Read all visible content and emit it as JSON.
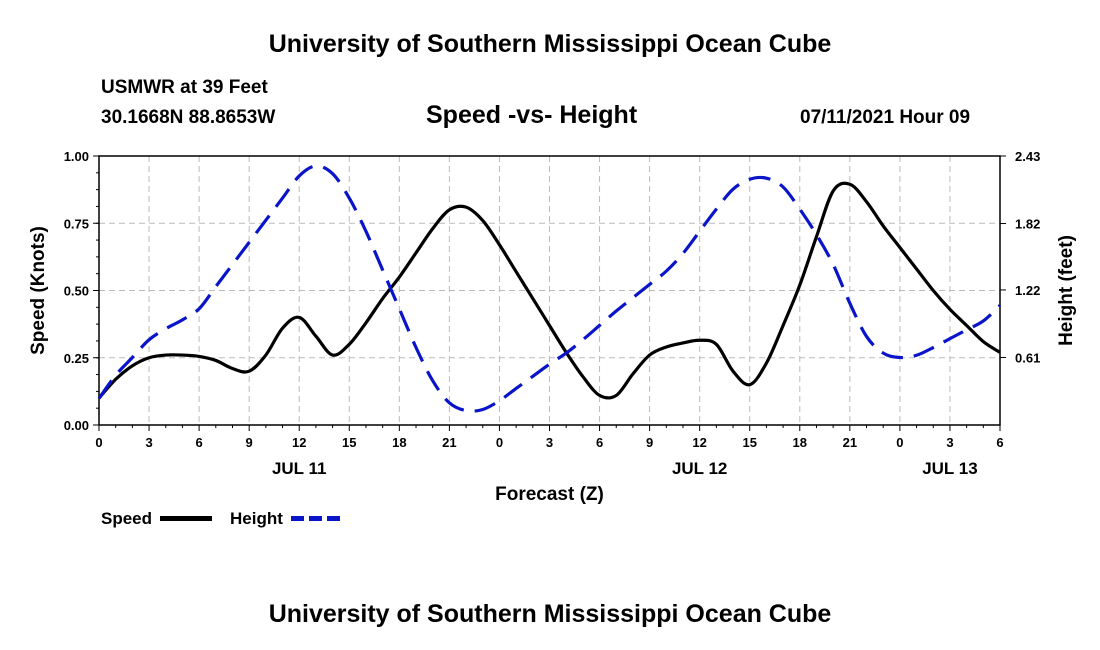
{
  "page_title_top": "University of Southern Mississippi Ocean Cube",
  "page_title_bottom": "University of Southern Mississippi Ocean Cube",
  "station": {
    "name": "USMWR at 39 Feet",
    "coords": "30.1668N  88.8653W",
    "datetime": "07/11/2021 Hour 09"
  },
  "colors": {
    "speed": "#000000",
    "height": "#0a14c8",
    "grid": "#bbbbbb"
  },
  "chart_data": {
    "type": "line",
    "title": "Speed -vs- Height",
    "xlabel": "Forecast (Z)",
    "ylabel": "Speed (Knots)",
    "y2label": "Height (feet)",
    "x_unit": "hours since JUL 11 00Z",
    "xlim": [
      0,
      54
    ],
    "ylim": [
      0,
      1.0
    ],
    "y2lim": [
      0,
      2.43
    ],
    "x_ticks": [
      0,
      3,
      6,
      9,
      12,
      15,
      18,
      21,
      24,
      27,
      30,
      33,
      36,
      39,
      42,
      45,
      48,
      51,
      54
    ],
    "x_tick_labels": [
      "0",
      "3",
      "6",
      "9",
      "12",
      "15",
      "18",
      "21",
      "0",
      "3",
      "6",
      "9",
      "12",
      "15",
      "18",
      "21",
      "0",
      "3",
      "6"
    ],
    "y_ticks": [
      "0.00",
      "0.25",
      "0.50",
      "0.75",
      "1.00"
    ],
    "y_tick_values": [
      0,
      0.25,
      0.5,
      0.75,
      1.0
    ],
    "y2_ticks": [
      "0.61",
      "1.22",
      "1.82",
      "2.43"
    ],
    "y2_tick_values": [
      0.61,
      1.22,
      1.82,
      2.43
    ],
    "day_labels": [
      {
        "x": 12,
        "label": "JUL 11"
      },
      {
        "x": 36,
        "label": "JUL 12"
      },
      {
        "x": 51,
        "label": "JUL 13"
      }
    ],
    "series": [
      {
        "name": "Speed",
        "axis": "left",
        "style": "solid",
        "x": [
          0,
          1,
          2,
          3,
          4,
          5,
          6,
          7,
          8,
          9,
          10,
          11,
          12,
          13,
          14,
          15,
          16,
          17,
          18,
          19,
          20,
          21,
          22,
          23,
          24,
          25,
          26,
          27,
          28,
          29,
          30,
          31,
          32,
          33,
          34,
          35,
          36,
          37,
          38,
          39,
          40,
          41,
          42,
          43,
          44,
          45,
          46,
          47,
          48,
          49,
          50,
          51,
          52,
          53,
          54
        ],
        "values": [
          0.1,
          0.17,
          0.22,
          0.25,
          0.26,
          0.26,
          0.255,
          0.24,
          0.21,
          0.2,
          0.26,
          0.36,
          0.4,
          0.33,
          0.26,
          0.3,
          0.38,
          0.47,
          0.55,
          0.64,
          0.73,
          0.8,
          0.81,
          0.76,
          0.67,
          0.57,
          0.47,
          0.37,
          0.27,
          0.18,
          0.11,
          0.11,
          0.19,
          0.26,
          0.29,
          0.305,
          0.315,
          0.3,
          0.2,
          0.15,
          0.23,
          0.37,
          0.52,
          0.7,
          0.87,
          0.895,
          0.83,
          0.74,
          0.66,
          0.58,
          0.5,
          0.43,
          0.37,
          0.31,
          0.27
        ]
      },
      {
        "name": "Height",
        "axis": "right",
        "style": "dashed",
        "x": [
          0,
          1,
          2,
          3,
          4,
          5,
          6,
          7,
          8,
          9,
          10,
          11,
          12,
          13,
          14,
          15,
          16,
          17,
          18,
          19,
          20,
          21,
          22,
          23,
          24,
          25,
          26,
          27,
          28,
          29,
          30,
          31,
          32,
          33,
          34,
          35,
          36,
          37,
          38,
          39,
          40,
          41,
          42,
          43,
          44,
          45,
          46,
          47,
          48,
          49,
          50,
          51,
          52,
          53,
          54
        ],
        "values": [
          0.24,
          0.45,
          0.61,
          0.77,
          0.87,
          0.95,
          1.05,
          1.25,
          1.45,
          1.65,
          1.85,
          2.05,
          2.25,
          2.34,
          2.27,
          2.05,
          1.75,
          1.4,
          1.05,
          0.7,
          0.4,
          0.2,
          0.13,
          0.14,
          0.22,
          0.33,
          0.44,
          0.55,
          0.65,
          0.77,
          0.9,
          1.03,
          1.15,
          1.27,
          1.39,
          1.55,
          1.75,
          1.95,
          2.13,
          2.22,
          2.23,
          2.15,
          1.95,
          1.72,
          1.45,
          1.1,
          0.8,
          0.65,
          0.61,
          0.63,
          0.7,
          0.78,
          0.86,
          0.94,
          1.08
        ]
      }
    ],
    "legend": [
      {
        "label": "Speed",
        "style": "solid"
      },
      {
        "label": "Height",
        "style": "dashed"
      }
    ]
  }
}
